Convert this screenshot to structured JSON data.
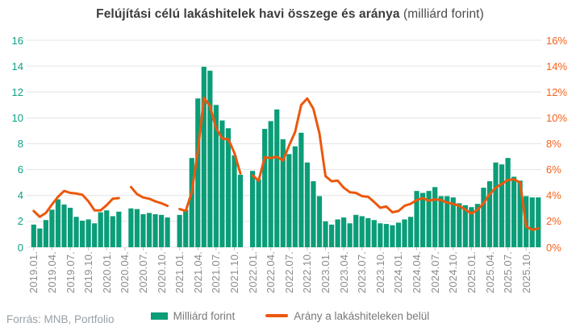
{
  "title": {
    "main": "Felújítási célú lakáshitelek havi összege és aránya",
    "suffix": " (milliárd forint)"
  },
  "source": "Forrás: MNB, Portfolio",
  "legend": {
    "items": [
      {
        "label": "Milliárd forint",
        "type": "bar"
      },
      {
        "label": "Arány a lakáshiteleken belül",
        "type": "line"
      }
    ]
  },
  "theme": {
    "bar_color": "#0a9d78",
    "line_color": "#eb580e",
    "left_axis_label_color": "#0ba185",
    "right_axis_label_color": "#f4611c",
    "gridline_color": "#e4e4e4",
    "tick_color": "#c2c2c2",
    "x_label_color": "#8c8c8c",
    "background": "#ffffff"
  },
  "chart_data": {
    "type": "combo",
    "title": "Felújítási célú lakáshitelek havi összege és aránya (milliárd forint)",
    "grid": true,
    "legend_position": "bottom",
    "y_left": {
      "min": 0,
      "max": 16,
      "ticks": [
        "0",
        "2",
        "4",
        "6",
        "8",
        "10",
        "12",
        "14",
        "16"
      ]
    },
    "y_right": {
      "min": 0,
      "max": 16,
      "ticks": [
        "0%",
        "2%",
        "4%",
        "6%",
        "8%",
        "10%",
        "12%",
        "14%",
        "16%"
      ]
    },
    "x_tick_every": 3,
    "categories": [
      "2019.01.",
      "2019.02.",
      "2019.03.",
      "2019.04.",
      "2019.05.",
      "2019.06.",
      "2019.07.",
      "2019.08.",
      "2019.09.",
      "2019.10.",
      "2019.11.",
      "2019.12.",
      "2020.01.",
      "2020.02.",
      "2020.03.",
      "2020.04.",
      "2020.05.",
      "2020.06.",
      "2020.07.",
      "2020.08.",
      "2020.09.",
      "2020.10.",
      "2020.11.",
      "2020.12.",
      "2021.01.",
      "2021.02.",
      "2021.03.",
      "2021.04.",
      "2021.05.",
      "2021.06.",
      "2021.07.",
      "2021.08.",
      "2021.09.",
      "2021.10.",
      "2021.11.",
      "2021.12.",
      "2022.01.",
      "2022.02.",
      "2022.03.",
      "2022.04.",
      "2022.05.",
      "2022.06.",
      "2022.07.",
      "2022.08.",
      "2022.09.",
      "2022.10.",
      "2022.11.",
      "2022.12.",
      "2023.01.",
      "2023.02.",
      "2023.03.",
      "2023.04.",
      "2023.05.",
      "2023.06.",
      "2023.07.",
      "2023.08.",
      "2023.09.",
      "2023.10.",
      "2023.11.",
      "2023.12.",
      "2024.01.",
      "2024.02.",
      "2024.03.",
      "2024.04.",
      "2024.05.",
      "2024.06.",
      "2024.07.",
      "2024.08.",
      "2024.09.",
      "2024.10.",
      "2024.11.",
      "2024.12.",
      "2025.01.",
      "2025.02.",
      "2025.03.",
      "2025.04.",
      "2025.05.",
      "2025.06.",
      "2025.07.",
      "2025.08.",
      "2025.09.",
      "2025.10.",
      "2025.11.",
      "2025.12."
    ],
    "series": [
      {
        "name": "Milliárd forint",
        "type": "bar",
        "axis": "left",
        "values": [
          1.75,
          1.45,
          2.1,
          2.9,
          3.7,
          3.3,
          3.05,
          2.35,
          2.05,
          2.15,
          1.85,
          2.7,
          2.85,
          2.4,
          2.75,
          null,
          3.0,
          2.95,
          2.55,
          2.65,
          2.55,
          2.5,
          2.3,
          null,
          2.5,
          2.9,
          6.9,
          11.5,
          13.95,
          13.65,
          11.0,
          9.8,
          9.2,
          7.1,
          5.6,
          null,
          5.9,
          5.25,
          9.15,
          9.75,
          10.65,
          8.35,
          7.2,
          7.8,
          8.85,
          6.55,
          5.1,
          3.95,
          2.0,
          1.75,
          2.15,
          2.3,
          1.85,
          2.5,
          2.4,
          2.25,
          2.1,
          1.85,
          1.8,
          1.7,
          1.9,
          2.15,
          2.35,
          4.35,
          4.2,
          4.35,
          4.65,
          3.95,
          3.95,
          3.85,
          3.4,
          3.25,
          3.1,
          3.35,
          4.6,
          5.1,
          6.55,
          6.4,
          6.9,
          5.45,
          5.15,
          3.95,
          3.85,
          3.85
        ]
      },
      {
        "name": "Arány a lakáshiteleken belül",
        "type": "line",
        "axis": "right",
        "values": [
          2.8,
          2.35,
          2.65,
          3.3,
          3.9,
          4.35,
          4.2,
          4.15,
          4.05,
          3.55,
          2.85,
          2.85,
          3.25,
          3.75,
          3.8,
          null,
          4.65,
          4.1,
          3.85,
          3.75,
          3.55,
          3.4,
          3.2,
          null,
          2.95,
          2.8,
          4.25,
          7.45,
          11.55,
          10.9,
          9.2,
          8.4,
          8.35,
          7.3,
          5.7,
          null,
          5.55,
          5.15,
          6.95,
          6.9,
          7.0,
          6.7,
          7.85,
          8.9,
          11.0,
          11.5,
          10.7,
          8.8,
          5.5,
          5.1,
          5.15,
          4.6,
          4.25,
          4.2,
          3.95,
          3.9,
          3.5,
          3.05,
          3.15,
          2.7,
          2.8,
          3.2,
          3.35,
          3.65,
          3.8,
          3.6,
          3.7,
          3.65,
          3.45,
          3.35,
          3.2,
          2.9,
          2.6,
          2.9,
          3.4,
          4.1,
          4.6,
          4.9,
          5.2,
          5.25,
          5.0,
          1.6,
          1.35,
          1.45
        ]
      }
    ]
  }
}
